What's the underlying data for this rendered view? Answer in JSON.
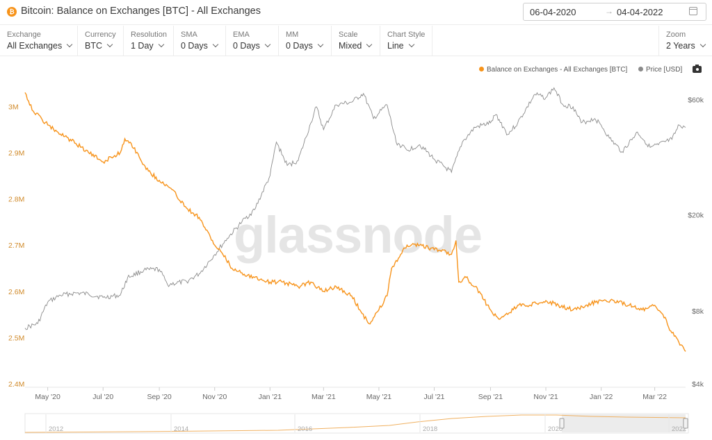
{
  "header": {
    "coin_icon": "bitcoin-icon",
    "title": "Bitcoin: Balance on Exchanges [BTC] - All Exchanges",
    "date_start": "06-04-2020",
    "date_arrow": "→",
    "date_end": "04-04-2022",
    "calendar_icon": "calendar-icon"
  },
  "toolbar": {
    "exchange": {
      "label": "Exchange",
      "value": "All Exchanges"
    },
    "currency": {
      "label": "Currency",
      "value": "BTC"
    },
    "resolution": {
      "label": "Resolution",
      "value": "1 Day"
    },
    "sma": {
      "label": "SMA",
      "value": "0 Days"
    },
    "ema": {
      "label": "EMA",
      "value": "0 Days"
    },
    "mm": {
      "label": "MM",
      "value": "0 Days"
    },
    "scale": {
      "label": "Scale",
      "value": "Mixed"
    },
    "chart_style": {
      "label": "Chart Style",
      "value": "Line"
    },
    "zoom": {
      "label": "Zoom",
      "value": "2 Years"
    }
  },
  "legend": {
    "balance": "Balance on Exchanges - All Exchanges [BTC]",
    "price": "Price [USD]",
    "camera_icon": "camera-icon"
  },
  "watermark": "glassnode",
  "chart_data": {
    "type": "line",
    "colors": {
      "balance": "#f7931a",
      "price": "#8a8a8a"
    },
    "x_ticks": [
      "May '20",
      "Jul '20",
      "Sep '20",
      "Nov '20",
      "Jan '21",
      "Mar '21",
      "May '21",
      "Jul '21",
      "Sep '21",
      "Nov '21",
      "Jan '22",
      "Mar '22"
    ],
    "left_axis": {
      "ticks": [
        "3M",
        "2.9M",
        "2.8M",
        "2.7M",
        "2.6M",
        "2.5M",
        "2.4M"
      ],
      "ylim": [
        2400000,
        3050000
      ]
    },
    "right_axis": {
      "ticks": [
        "$60k",
        "$20k",
        "$8k",
        "$4k"
      ],
      "scale": "log",
      "ylim": [
        4000,
        70000
      ]
    },
    "series": [
      {
        "name": "Balance on Exchanges - All Exchanges [BTC]",
        "axis": "left",
        "x": [
          "2020-04-06",
          "2020-04-15",
          "2020-05-01",
          "2020-05-15",
          "2020-06-01",
          "2020-06-15",
          "2020-07-01",
          "2020-07-10",
          "2020-07-20",
          "2020-07-25",
          "2020-08-01",
          "2020-08-10",
          "2020-08-20",
          "2020-09-01",
          "2020-09-15",
          "2020-10-01",
          "2020-10-15",
          "2020-11-01",
          "2020-11-10",
          "2020-11-20",
          "2020-12-01",
          "2020-12-15",
          "2021-01-01",
          "2021-01-15",
          "2021-02-01",
          "2021-02-15",
          "2021-03-01",
          "2021-03-15",
          "2021-04-01",
          "2021-04-10",
          "2021-04-20",
          "2021-05-01",
          "2021-05-10",
          "2021-05-15",
          "2021-05-25",
          "2021-06-01",
          "2021-06-15",
          "2021-07-01",
          "2021-07-10",
          "2021-07-20",
          "2021-07-25",
          "2021-07-28",
          "2021-08-05",
          "2021-08-15",
          "2021-09-01",
          "2021-09-10",
          "2021-09-20",
          "2021-10-01",
          "2021-10-15",
          "2021-11-01",
          "2021-11-15",
          "2021-12-01",
          "2021-12-15",
          "2022-01-01",
          "2022-01-15",
          "2022-02-01",
          "2022-02-15",
          "2022-03-01",
          "2022-03-10",
          "2022-03-20",
          "2022-04-04"
        ],
        "values": [
          3030000,
          2990000,
          2960000,
          2940000,
          2920000,
          2900000,
          2880000,
          2890000,
          2900000,
          2930000,
          2920000,
          2890000,
          2860000,
          2840000,
          2820000,
          2780000,
          2760000,
          2700000,
          2680000,
          2650000,
          2640000,
          2630000,
          2620000,
          2620000,
          2610000,
          2620000,
          2600000,
          2610000,
          2590000,
          2560000,
          2530000,
          2560000,
          2590000,
          2650000,
          2680000,
          2700000,
          2700000,
          2690000,
          2690000,
          2680000,
          2710000,
          2620000,
          2630000,
          2610000,
          2560000,
          2540000,
          2550000,
          2570000,
          2570000,
          2580000,
          2570000,
          2560000,
          2570000,
          2580000,
          2580000,
          2570000,
          2560000,
          2570000,
          2550000,
          2510000,
          2470000
        ]
      },
      {
        "name": "Price [USD]",
        "axis": "right",
        "x": [
          "2020-04-06",
          "2020-04-20",
          "2020-05-01",
          "2020-05-15",
          "2020-06-01",
          "2020-06-15",
          "2020-07-01",
          "2020-07-20",
          "2020-07-28",
          "2020-08-15",
          "2020-09-01",
          "2020-09-10",
          "2020-10-01",
          "2020-10-15",
          "2020-11-01",
          "2020-11-15",
          "2020-12-01",
          "2020-12-15",
          "2021-01-01",
          "2021-01-08",
          "2021-01-20",
          "2021-02-01",
          "2021-02-15",
          "2021-02-21",
          "2021-03-01",
          "2021-03-15",
          "2021-04-01",
          "2021-04-14",
          "2021-04-25",
          "2021-05-10",
          "2021-05-20",
          "2021-06-01",
          "2021-06-15",
          "2021-07-01",
          "2021-07-20",
          "2021-08-01",
          "2021-08-15",
          "2021-09-01",
          "2021-09-07",
          "2021-09-20",
          "2021-10-01",
          "2021-10-20",
          "2021-11-01",
          "2021-11-10",
          "2021-11-20",
          "2021-12-01",
          "2021-12-10",
          "2021-12-25",
          "2022-01-01",
          "2022-01-10",
          "2022-01-24",
          "2022-02-10",
          "2022-02-24",
          "2022-03-05",
          "2022-03-20",
          "2022-03-28",
          "2022-04-04"
        ],
        "values": [
          6800,
          7100,
          8700,
          9300,
          9500,
          9400,
          9100,
          9300,
          11000,
          11800,
          11900,
          10300,
          10600,
          11400,
          13700,
          16000,
          18700,
          21000,
          29000,
          40000,
          32000,
          33500,
          48000,
          56000,
          45000,
          57000,
          58500,
          63500,
          50000,
          57000,
          40000,
          37000,
          39000,
          34000,
          30000,
          40000,
          46000,
          48000,
          52000,
          43000,
          48000,
          63000,
          61000,
          67000,
          57000,
          56000,
          48000,
          50000,
          47000,
          41500,
          36500,
          44000,
          38000,
          39000,
          41000,
          47000,
          46000
        ]
      }
    ]
  },
  "navigator": {
    "years": [
      "2012",
      "2014",
      "2016",
      "2018",
      "2020",
      "2022"
    ]
  }
}
